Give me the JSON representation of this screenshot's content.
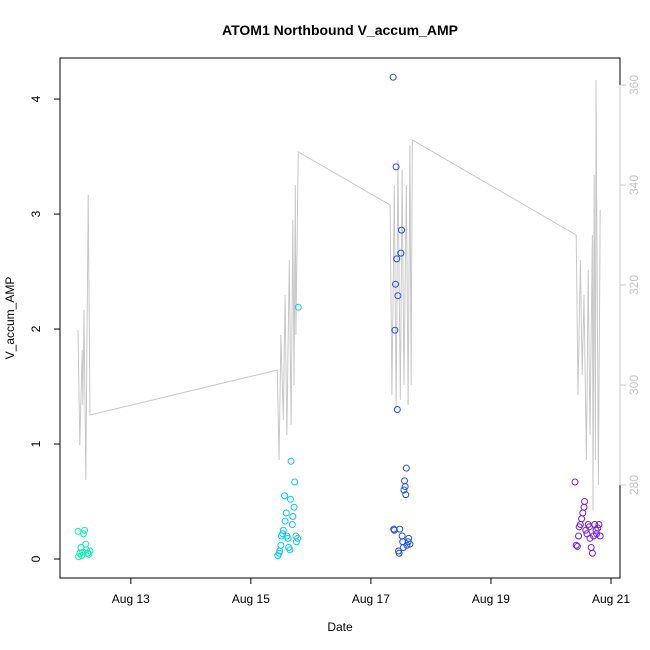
{
  "chart_data": {
    "type": "scatter",
    "title": "ATOM1 Northbound V_accum_AMP",
    "x_label": "Date",
    "y_label": "V_accum_AMP",
    "xlim": [
      11.82,
      21.15
    ],
    "xticks": [
      {
        "value": 13,
        "label": "Aug 13"
      },
      {
        "value": 15,
        "label": "Aug 15"
      },
      {
        "value": 17,
        "label": "Aug 17"
      },
      {
        "value": 19,
        "label": "Aug 19"
      },
      {
        "value": 21,
        "label": "Aug 21"
      }
    ],
    "ylim": [
      -0.165,
      4.357
    ],
    "yticks": [
      0,
      1,
      2,
      3,
      4
    ],
    "y2lim": [
      261.4,
      365.4
    ],
    "y2ticks": [
      280,
      300,
      320,
      340,
      360
    ],
    "y2color": "#c8c8c8",
    "series": [
      {
        "type": "scatter",
        "color": "#10f0b0",
        "x": [
          12.12,
          12.13,
          12.15,
          12.17,
          12.18,
          12.2,
          12.21,
          12.23,
          12.25,
          12.26,
          12.28,
          12.3,
          12.32
        ],
        "values": [
          0.24,
          0.02,
          0.05,
          0.1,
          0.03,
          0.06,
          0.22,
          0.25,
          0.13,
          0.08,
          0.05,
          0.04,
          0.07
        ]
      },
      {
        "type": "scatter",
        "color": "#10c8f0",
        "x": [
          15.45,
          15.47,
          15.48,
          15.5,
          15.51,
          15.53,
          15.54,
          15.56,
          15.57,
          15.59,
          15.6,
          15.62,
          15.63,
          15.65,
          15.66,
          15.67,
          15.69,
          15.7,
          15.72,
          15.73,
          15.75,
          15.76,
          15.78,
          15.79
        ],
        "values": [
          0.03,
          0.05,
          0.07,
          0.12,
          0.2,
          0.22,
          0.25,
          0.55,
          0.33,
          0.4,
          0.2,
          0.18,
          0.1,
          0.08,
          0.52,
          0.85,
          0.3,
          0.37,
          0.45,
          0.67,
          0.2,
          0.15,
          0.18,
          2.19
        ]
      },
      {
        "type": "scatter",
        "color": "#2050f0",
        "x": [
          17.37,
          17.38,
          17.39,
          17.4,
          17.41,
          17.42,
          17.43,
          17.44,
          17.45,
          17.46,
          17.47,
          17.48,
          17.5,
          17.51,
          17.52,
          17.53,
          17.54,
          17.55,
          17.56,
          17.57,
          17.58,
          17.59,
          17.6,
          17.62,
          17.63,
          17.65
        ],
        "values": [
          4.19,
          0.26,
          0.25,
          1.99,
          2.39,
          3.41,
          2.61,
          1.3,
          2.29,
          0.07,
          0.05,
          0.26,
          2.66,
          2.86,
          0.2,
          0.15,
          0.1,
          0.6,
          0.68,
          0.63,
          0.56,
          0.79,
          0.12,
          0.15,
          0.18,
          0.13
        ]
      },
      {
        "type": "scatter",
        "color": "#7020e8",
        "x": [
          20.4,
          20.42,
          20.44,
          20.46,
          20.47,
          20.49,
          20.51,
          20.53,
          20.55,
          20.56,
          20.58,
          20.6,
          20.62,
          20.64,
          20.65,
          20.67,
          20.69,
          20.71,
          20.73,
          20.75,
          20.76,
          20.78,
          20.8,
          20.82
        ],
        "values": [
          0.67,
          0.12,
          0.11,
          0.2,
          0.28,
          0.3,
          0.35,
          0.4,
          0.45,
          0.5,
          0.25,
          0.22,
          0.3,
          0.28,
          0.18,
          0.1,
          0.05,
          0.2,
          0.3,
          0.25,
          0.22,
          0.27,
          0.3,
          0.2
        ]
      },
      {
        "type": "line",
        "axis": "y2",
        "color": "#c8c8c8",
        "x": [
          12.12,
          12.15,
          12.19,
          12.2,
          12.22,
          12.25,
          12.29,
          12.32,
          15.44,
          15.47,
          15.5,
          15.54,
          15.57,
          15.6,
          15.64,
          15.67,
          15.7,
          15.72,
          15.74,
          15.75,
          15.79,
          17.32,
          17.35,
          17.39,
          17.42,
          17.45,
          17.49,
          17.52,
          17.55,
          17.59,
          17.62,
          17.65,
          17.67,
          17.69,
          20.42,
          20.45,
          20.49,
          20.52,
          20.55,
          20.59,
          20.62,
          20.65,
          20.69,
          20.7,
          20.72,
          20.74,
          20.75,
          20.79,
          20.82
        ],
        "values": [
          311,
          288,
          307,
          296,
          315,
          281,
          338,
          294,
          303,
          285,
          310,
          293,
          318,
          290,
          325,
          292,
          333,
          300,
          340,
          310,
          346.6,
          336,
          298,
          340,
          295,
          345,
          297,
          343,
          300,
          340,
          296,
          348,
          300,
          349,
          330,
          298,
          325,
          302,
          318,
          285,
          323,
          290,
          330,
          275,
          342,
          285,
          361,
          280,
          335
        ]
      }
    ]
  }
}
